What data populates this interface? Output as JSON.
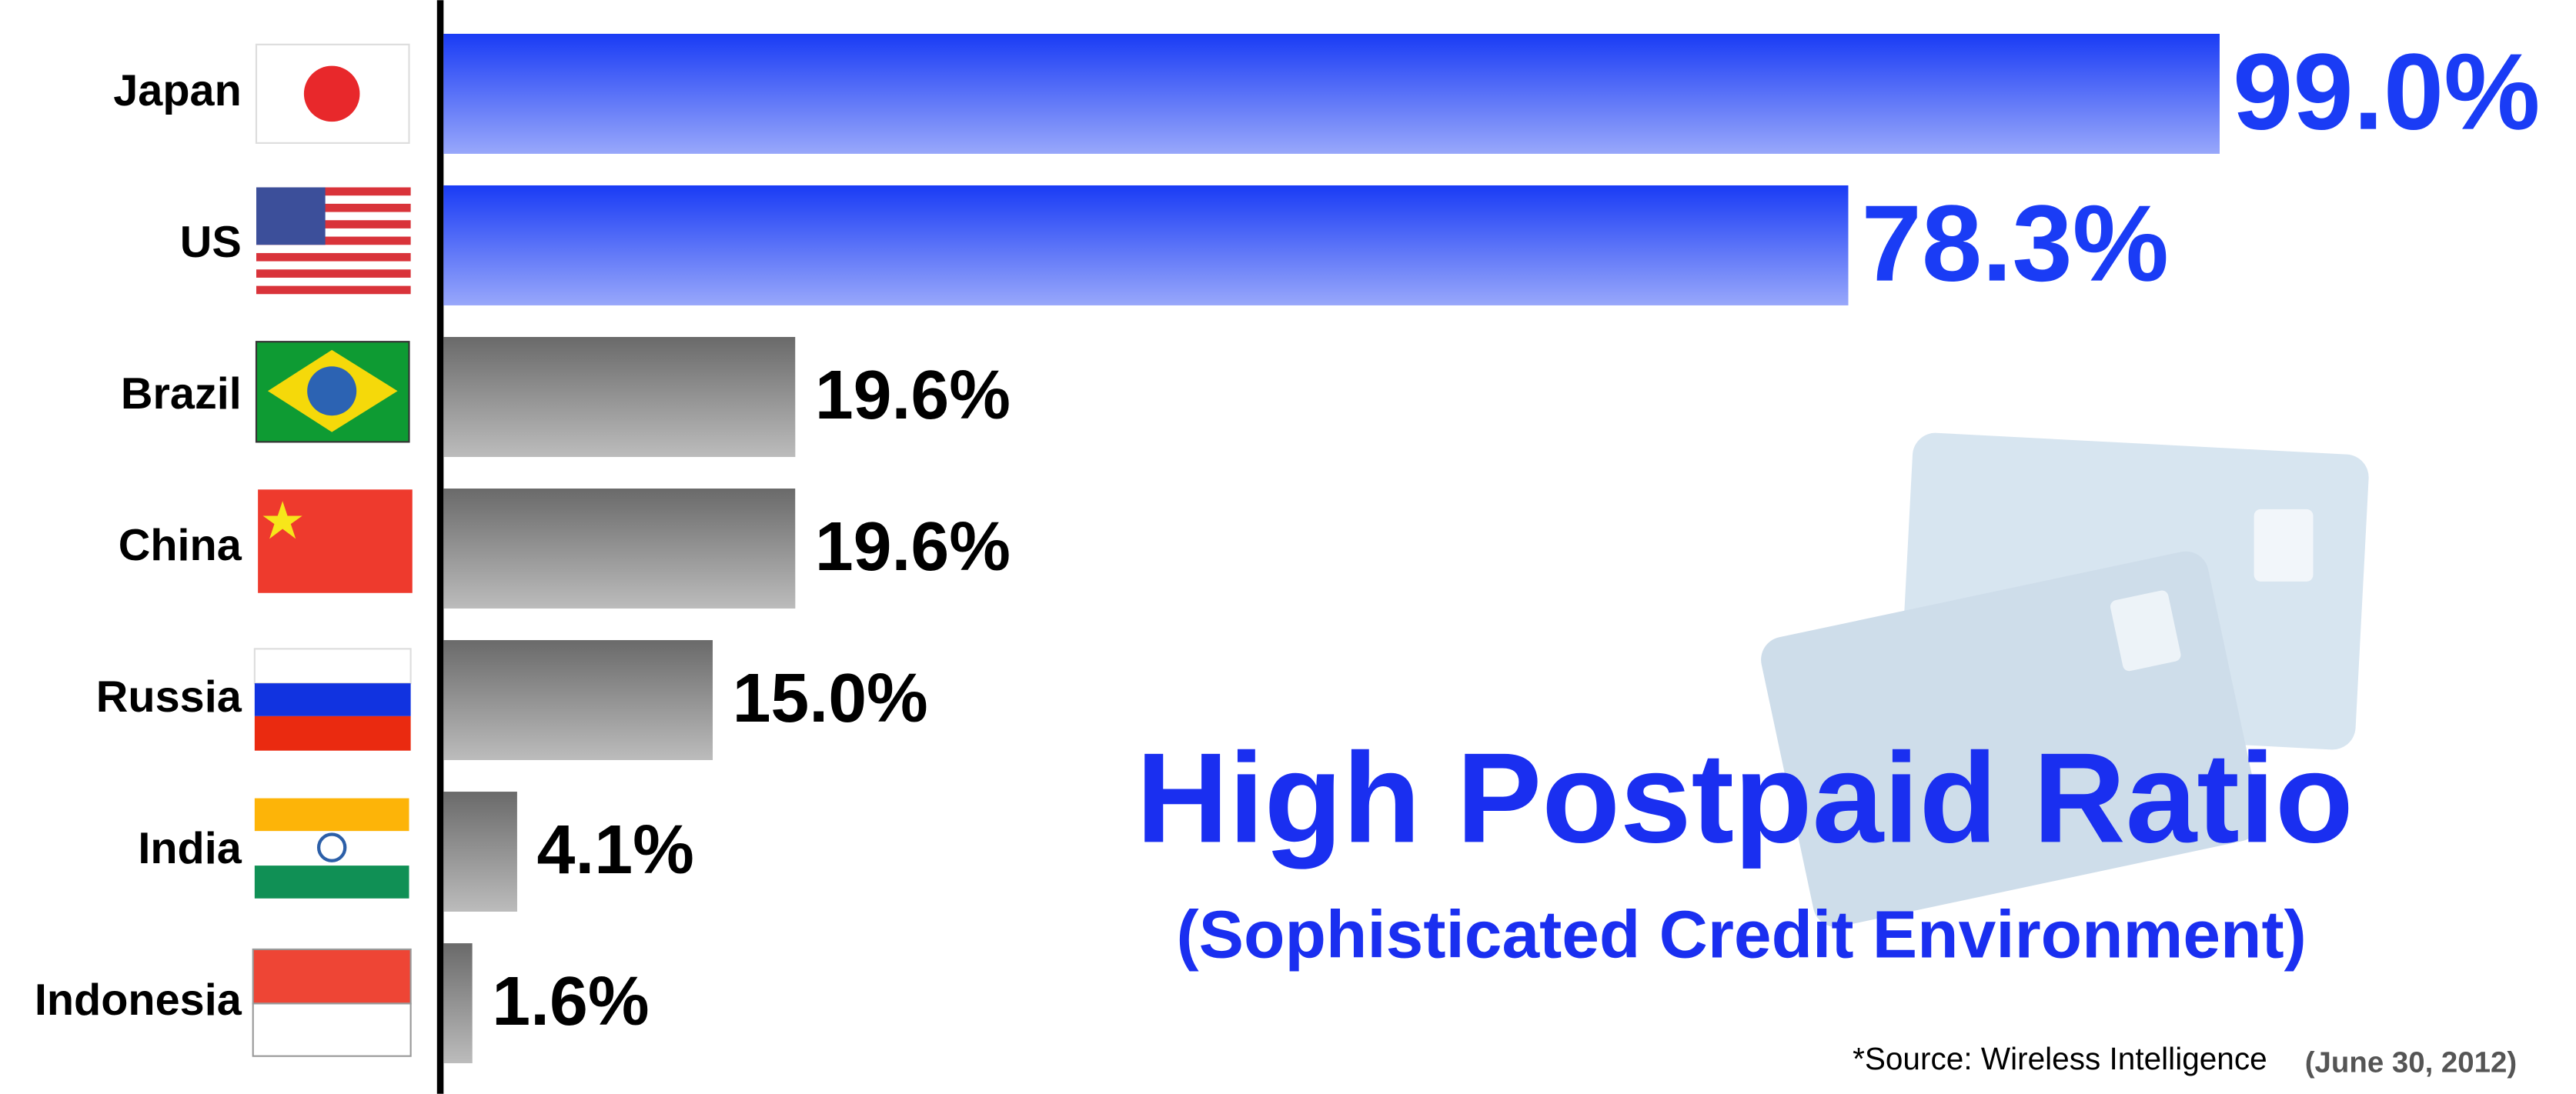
{
  "chart_data": {
    "type": "bar",
    "orientation": "horizontal",
    "title": "High Postpaid Ratio",
    "subtitle": "(Sophisticated Credit Environment)",
    "source": "*Source: Wireless Intelligence",
    "source_date": "(June 30, 2012)",
    "categories": [
      "Japan",
      "US",
      "Brazil",
      "China",
      "Russia",
      "India",
      "Indonesia"
    ],
    "values": [
      99.0,
      78.3,
      19.6,
      19.6,
      15.0,
      4.1,
      1.6
    ],
    "value_labels": [
      "99.0%",
      "78.3%",
      "19.6%",
      "19.6%",
      "15.0%",
      "4.1%",
      "1.6%"
    ],
    "colors": [
      "#1a3cf5",
      "#1a3cf5",
      "#6a6a6a",
      "#6a6a6a",
      "#6a6a6a",
      "#6a6a6a",
      "#6a6a6a"
    ],
    "label_colors": [
      "#1a3cf5",
      "#1a3cf5",
      "#000000",
      "#000000",
      "#000000",
      "#000000",
      "#000000"
    ],
    "title_color": "#1a2ff0",
    "xlim": [
      0,
      100
    ]
  }
}
